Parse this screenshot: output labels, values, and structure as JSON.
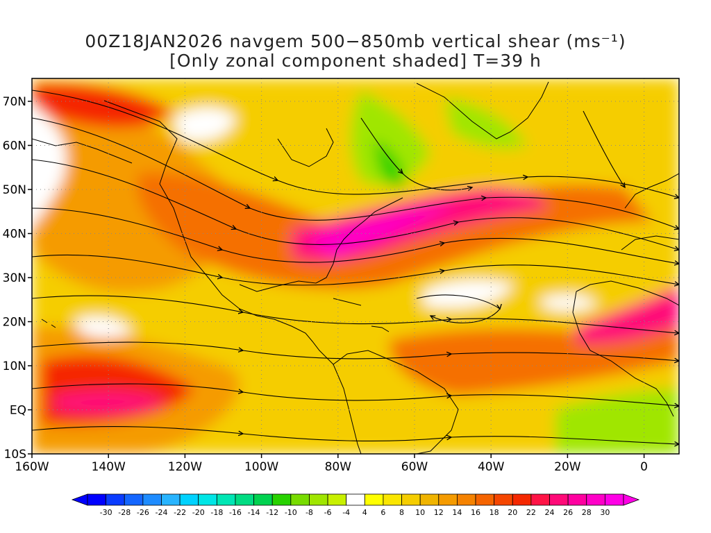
{
  "title": {
    "line1": "00Z18JAN2026 navgem 500−850mb vertical shear (ms⁻¹)",
    "line2": "[Only zonal component shaded] T=39 h"
  },
  "axes": {
    "lat_labels": [
      "70N",
      "60N",
      "50N",
      "40N",
      "30N",
      "20N",
      "10N",
      "EQ",
      "10S"
    ],
    "lon_labels": [
      "160W",
      "140W",
      "120W",
      "100W",
      "80W",
      "60W",
      "40W",
      "20W",
      "0"
    ]
  },
  "colorbar": {
    "labels": [
      "-30",
      "-28",
      "-26",
      "-24",
      "-22",
      "-20",
      "-18",
      "-16",
      "-14",
      "-12",
      "-10",
      "-8",
      "-6",
      "-4",
      "4",
      "6",
      "8",
      "10",
      "12",
      "14",
      "16",
      "18",
      "20",
      "22",
      "24",
      "26",
      "28",
      "30"
    ],
    "colors": [
      "#0000ff",
      "#0a3cff",
      "#1466ff",
      "#1e8cff",
      "#28b4ff",
      "#00d2ff",
      "#00e6e6",
      "#00e6b4",
      "#00dc82",
      "#00d250",
      "#28d200",
      "#78dc00",
      "#a0e600",
      "#c8f000",
      "#ffffff",
      "#ffff00",
      "#fae600",
      "#f5cd00",
      "#f0b400",
      "#f59b00",
      "#f58200",
      "#f56400",
      "#f54600",
      "#f52800",
      "#ff1446",
      "#ff0a78",
      "#ff00a0",
      "#ff00c8",
      "#ff00e6"
    ],
    "under_color": "#0000ff",
    "over_color": "#ff00e6"
  },
  "fill_colors": {
    "background": "#ffffff",
    "light_orange": "#f5cd00",
    "orange": "#f59b00",
    "dark_orange": "#f57000",
    "red": "#f52800",
    "pink": "#ff0a78",
    "magenta": "#ff00c8",
    "light_green": "#a0e600",
    "green": "#28d200"
  }
}
